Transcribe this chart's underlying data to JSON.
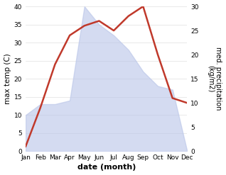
{
  "months": [
    "Jan",
    "Feb",
    "Mar",
    "Apr",
    "May",
    "Jun",
    "Jul",
    "Aug",
    "Sep",
    "Oct",
    "Nov",
    "Dec"
  ],
  "temperature": [
    10,
    13,
    13,
    14,
    40,
    35,
    32,
    28,
    22,
    18,
    17,
    0
  ],
  "precipitation": [
    1,
    9,
    18,
    24,
    26,
    27,
    25,
    28,
    30,
    20,
    11,
    10
  ],
  "temp_fill_color": "#b8c4e8",
  "precip_color": "#c0392b",
  "temp_ylim": [
    0,
    40
  ],
  "precip_ylim": [
    0,
    30
  ],
  "xlabel": "date (month)",
  "ylabel_left": "max temp (C)",
  "ylabel_right": "med. precipitation\n(kg/m2)",
  "bg_color": "#ffffff"
}
